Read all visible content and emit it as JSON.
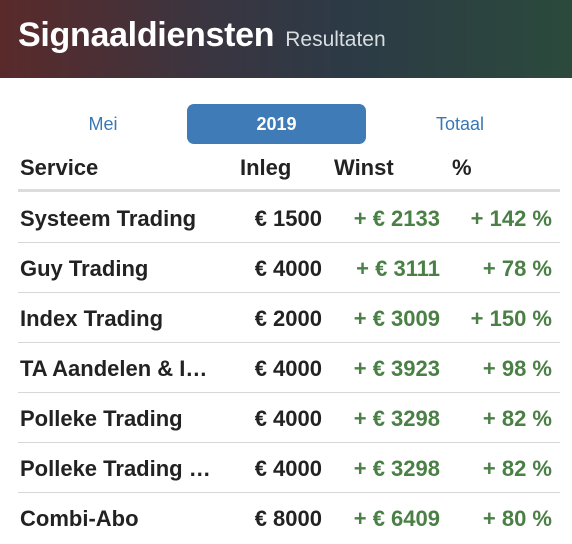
{
  "header": {
    "title": "Signaaldiensten",
    "subtitle": "Resultaten"
  },
  "tabs": [
    {
      "label": "Mei",
      "active": false
    },
    {
      "label": "2019",
      "active": true
    },
    {
      "label": "Totaal",
      "active": false
    }
  ],
  "table": {
    "columns": [
      "Service",
      "Inleg",
      "Winst",
      "%"
    ],
    "rows": [
      {
        "name": "Systeem Trading",
        "inleg": "€ 1500",
        "winst": "+ € 2133",
        "pct": "+ 142 %"
      },
      {
        "name": "Guy Trading",
        "inleg": "€ 4000",
        "winst": "+ € 3111",
        "pct": "+ 78 %"
      },
      {
        "name": "Index Trading",
        "inleg": "€ 2000",
        "winst": "+ € 3009",
        "pct": "+ 150 %"
      },
      {
        "name": "TA Aandelen & I…",
        "inleg": "€ 4000",
        "winst": "+ € 3923",
        "pct": "+ 98 %"
      },
      {
        "name": "Polleke Trading",
        "inleg": "€ 4000",
        "winst": "+ € 3298",
        "pct": "+ 82 %"
      },
      {
        "name": "Polleke Trading …",
        "inleg": "€ 4000",
        "winst": "+ € 3298",
        "pct": "+ 82 %"
      },
      {
        "name": "Combi-Abo",
        "inleg": "€ 8000",
        "winst": "+ € 6409",
        "pct": "+ 80 %"
      }
    ]
  },
  "colors": {
    "accent": "#3f7bb6",
    "positive": "#4a7f45",
    "header_start": "#5a2a2a",
    "header_end": "#2b4a3c"
  }
}
